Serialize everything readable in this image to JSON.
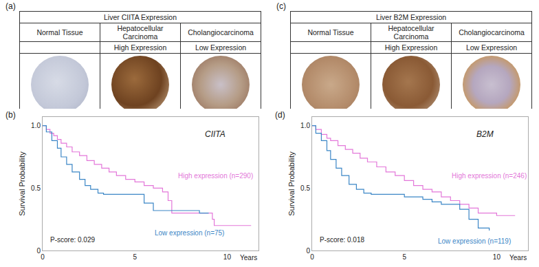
{
  "panels": [
    {
      "label": "(a)",
      "title": "Liver CIITA Expression",
      "columns": [
        "Normal Tissue",
        "Hepatocellular Carcinoma",
        "Cholangiocarcinoma"
      ],
      "levels": [
        null,
        "High Expression",
        "Low Expression"
      ]
    },
    {
      "label": "(c)",
      "title": "Liver B2M Expression",
      "columns": [
        "Normal Tissue",
        "Hepatocellular Carcinoma",
        "Cholangiocarcinoma"
      ],
      "levels": [
        null,
        "High Expression",
        "Low Expression"
      ]
    }
  ],
  "chart_data": [
    {
      "type": "line",
      "label": "(b)",
      "title": "CIITA",
      "x_label": "Years",
      "y_label": "Survival Probability",
      "annotations": [
        "P-score: 0.029"
      ],
      "line_style": "step",
      "xlim": [
        0,
        11.7
      ],
      "xticks": [
        0,
        5,
        10
      ],
      "ylim": [
        0,
        1.07
      ],
      "yticks": [
        0,
        0.5,
        {
          "value": 1,
          "label": "1.0"
        }
      ],
      "grid": false,
      "series": [
        {
          "name": "High expression (n=290)",
          "color": "#e377d9",
          "x": [
            0,
            0.2,
            0.4,
            0.6,
            0.8,
            1.0,
            1.3,
            1.6,
            2.0,
            2.4,
            2.8,
            3.2,
            3.6,
            4.0,
            4.5,
            5.0,
            5.5,
            6.0,
            6.5,
            6.8,
            7.0,
            9.2,
            9.3,
            11.3
          ],
          "values": [
            1.0,
            0.97,
            0.94,
            0.92,
            0.89,
            0.86,
            0.83,
            0.79,
            0.76,
            0.72,
            0.69,
            0.66,
            0.63,
            0.6,
            0.57,
            0.55,
            0.52,
            0.5,
            0.47,
            0.4,
            0.3,
            0.25,
            0.2,
            0.2
          ]
        },
        {
          "name": "Low expression (n=75)",
          "color": "#3b86c6",
          "x": [
            0,
            0.2,
            0.5,
            0.8,
            1.0,
            1.3,
            1.6,
            2.0,
            2.3,
            2.6,
            3.0,
            3.3,
            5.0,
            5.5,
            6.0,
            8.5,
            9.0
          ],
          "values": [
            1.0,
            0.95,
            0.88,
            0.82,
            0.75,
            0.69,
            0.63,
            0.57,
            0.52,
            0.49,
            0.46,
            0.45,
            0.45,
            0.38,
            0.32,
            0.3,
            0.3
          ]
        }
      ]
    },
    {
      "type": "line",
      "label": "(d)",
      "title": "B2M",
      "x_label": "Years",
      "y_label": "Survival Probability",
      "annotations": [
        "P-score: 0.018"
      ],
      "line_style": "step",
      "xlim": [
        0,
        11.7
      ],
      "xticks": [
        0,
        5,
        10
      ],
      "ylim": [
        0,
        1.07
      ],
      "yticks": [
        0,
        0.5,
        {
          "value": 1,
          "label": "1.0"
        }
      ],
      "grid": false,
      "series": [
        {
          "name": "High expression (n=246)",
          "color": "#e377d9",
          "x": [
            0,
            0.2,
            0.5,
            0.8,
            1.0,
            1.4,
            1.8,
            2.2,
            2.6,
            3.0,
            3.5,
            4.0,
            4.5,
            5.0,
            5.5,
            6.0,
            6.5,
            7.0,
            7.5,
            8.0,
            8.5,
            9.0,
            10.0,
            11.0
          ],
          "values": [
            1.0,
            0.97,
            0.93,
            0.9,
            0.88,
            0.84,
            0.81,
            0.78,
            0.74,
            0.71,
            0.67,
            0.63,
            0.6,
            0.56,
            0.52,
            0.49,
            0.47,
            0.43,
            0.4,
            0.37,
            0.34,
            0.3,
            0.28,
            0.28
          ]
        },
        {
          "name": "Low expression (n=119)",
          "color": "#3b86c6",
          "x": [
            0,
            0.2,
            0.5,
            0.8,
            1.0,
            1.3,
            1.6,
            2.0,
            2.4,
            2.8,
            3.2,
            5.0,
            6.0,
            6.5,
            7.0,
            8.0,
            8.5,
            9.0,
            9.6
          ],
          "values": [
            1.0,
            0.94,
            0.88,
            0.8,
            0.73,
            0.66,
            0.6,
            0.53,
            0.49,
            0.46,
            0.45,
            0.43,
            0.41,
            0.39,
            0.37,
            0.33,
            0.25,
            0.18,
            0.16
          ]
        }
      ]
    }
  ]
}
